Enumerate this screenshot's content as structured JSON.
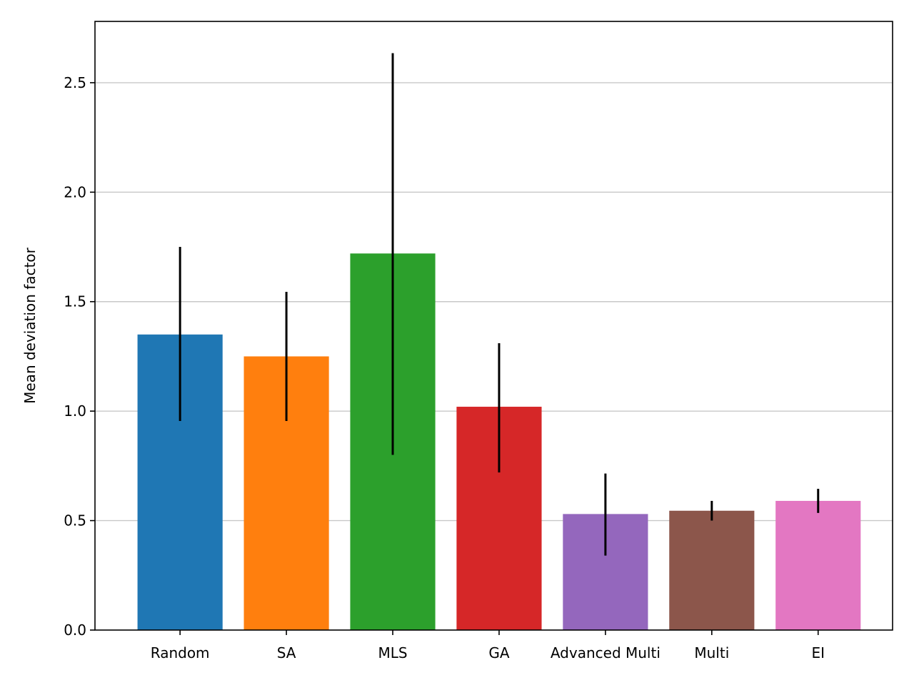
{
  "chart_data": {
    "type": "bar",
    "title": "",
    "xlabel": "",
    "ylabel": "Mean deviation factor",
    "categories": [
      "Random",
      "SA",
      "MLS",
      "GA",
      "Advanced Multi",
      "Multi",
      "EI"
    ],
    "values": [
      1.35,
      1.25,
      1.72,
      1.02,
      0.53,
      0.545,
      0.59
    ],
    "error_low": [
      0.955,
      0.955,
      0.8,
      0.72,
      0.34,
      0.5,
      0.535
    ],
    "error_high": [
      1.75,
      1.545,
      2.635,
      1.31,
      0.715,
      0.59,
      0.645
    ],
    "colors": [
      "#1f77b4",
      "#ff7f0e",
      "#2ca02c",
      "#d62728",
      "#9467bd",
      "#8c564b",
      "#e377c2"
    ],
    "error_color": "#000000",
    "ylim": [
      0,
      2.78
    ],
    "yticks": [
      "0.0",
      "0.5",
      "1.0",
      "1.5",
      "2.0",
      "2.5"
    ],
    "grid": "y",
    "legend": "none"
  }
}
